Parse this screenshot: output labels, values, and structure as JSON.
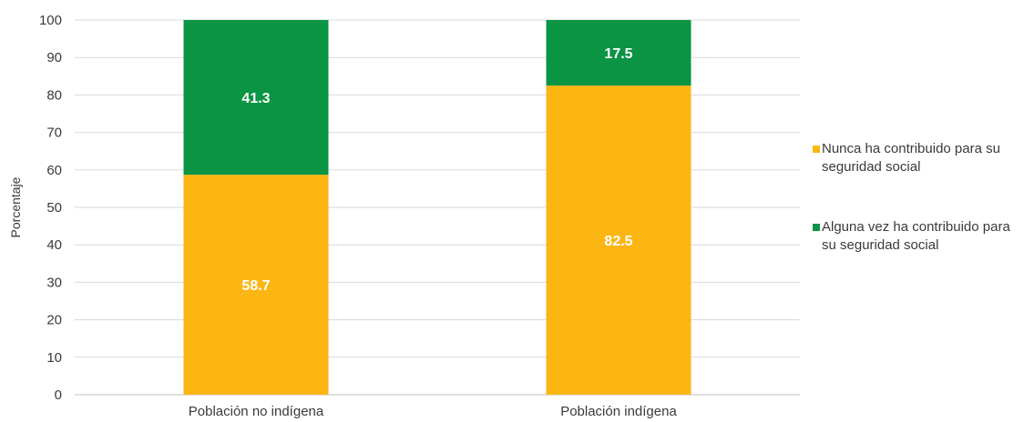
{
  "chart_data": {
    "type": "bar",
    "stacked": true,
    "title": "",
    "xlabel": "",
    "ylabel": "Porcentaje",
    "ylim": [
      0,
      100
    ],
    "yticks": [
      0,
      10,
      20,
      30,
      40,
      50,
      60,
      70,
      80,
      90,
      100
    ],
    "categories": [
      "Población no indígena",
      "Población indígena"
    ],
    "series": [
      {
        "name": "Nunca ha contribuido para su seguridad social",
        "values": [
          58.7,
          82.5
        ],
        "color": "#FBB614"
      },
      {
        "name": "Alguna vez ha contribuido para su seguridad social",
        "values": [
          41.3,
          17.5
        ],
        "color": "#0A9444"
      }
    ],
    "grid": true,
    "legend_position": "right"
  }
}
